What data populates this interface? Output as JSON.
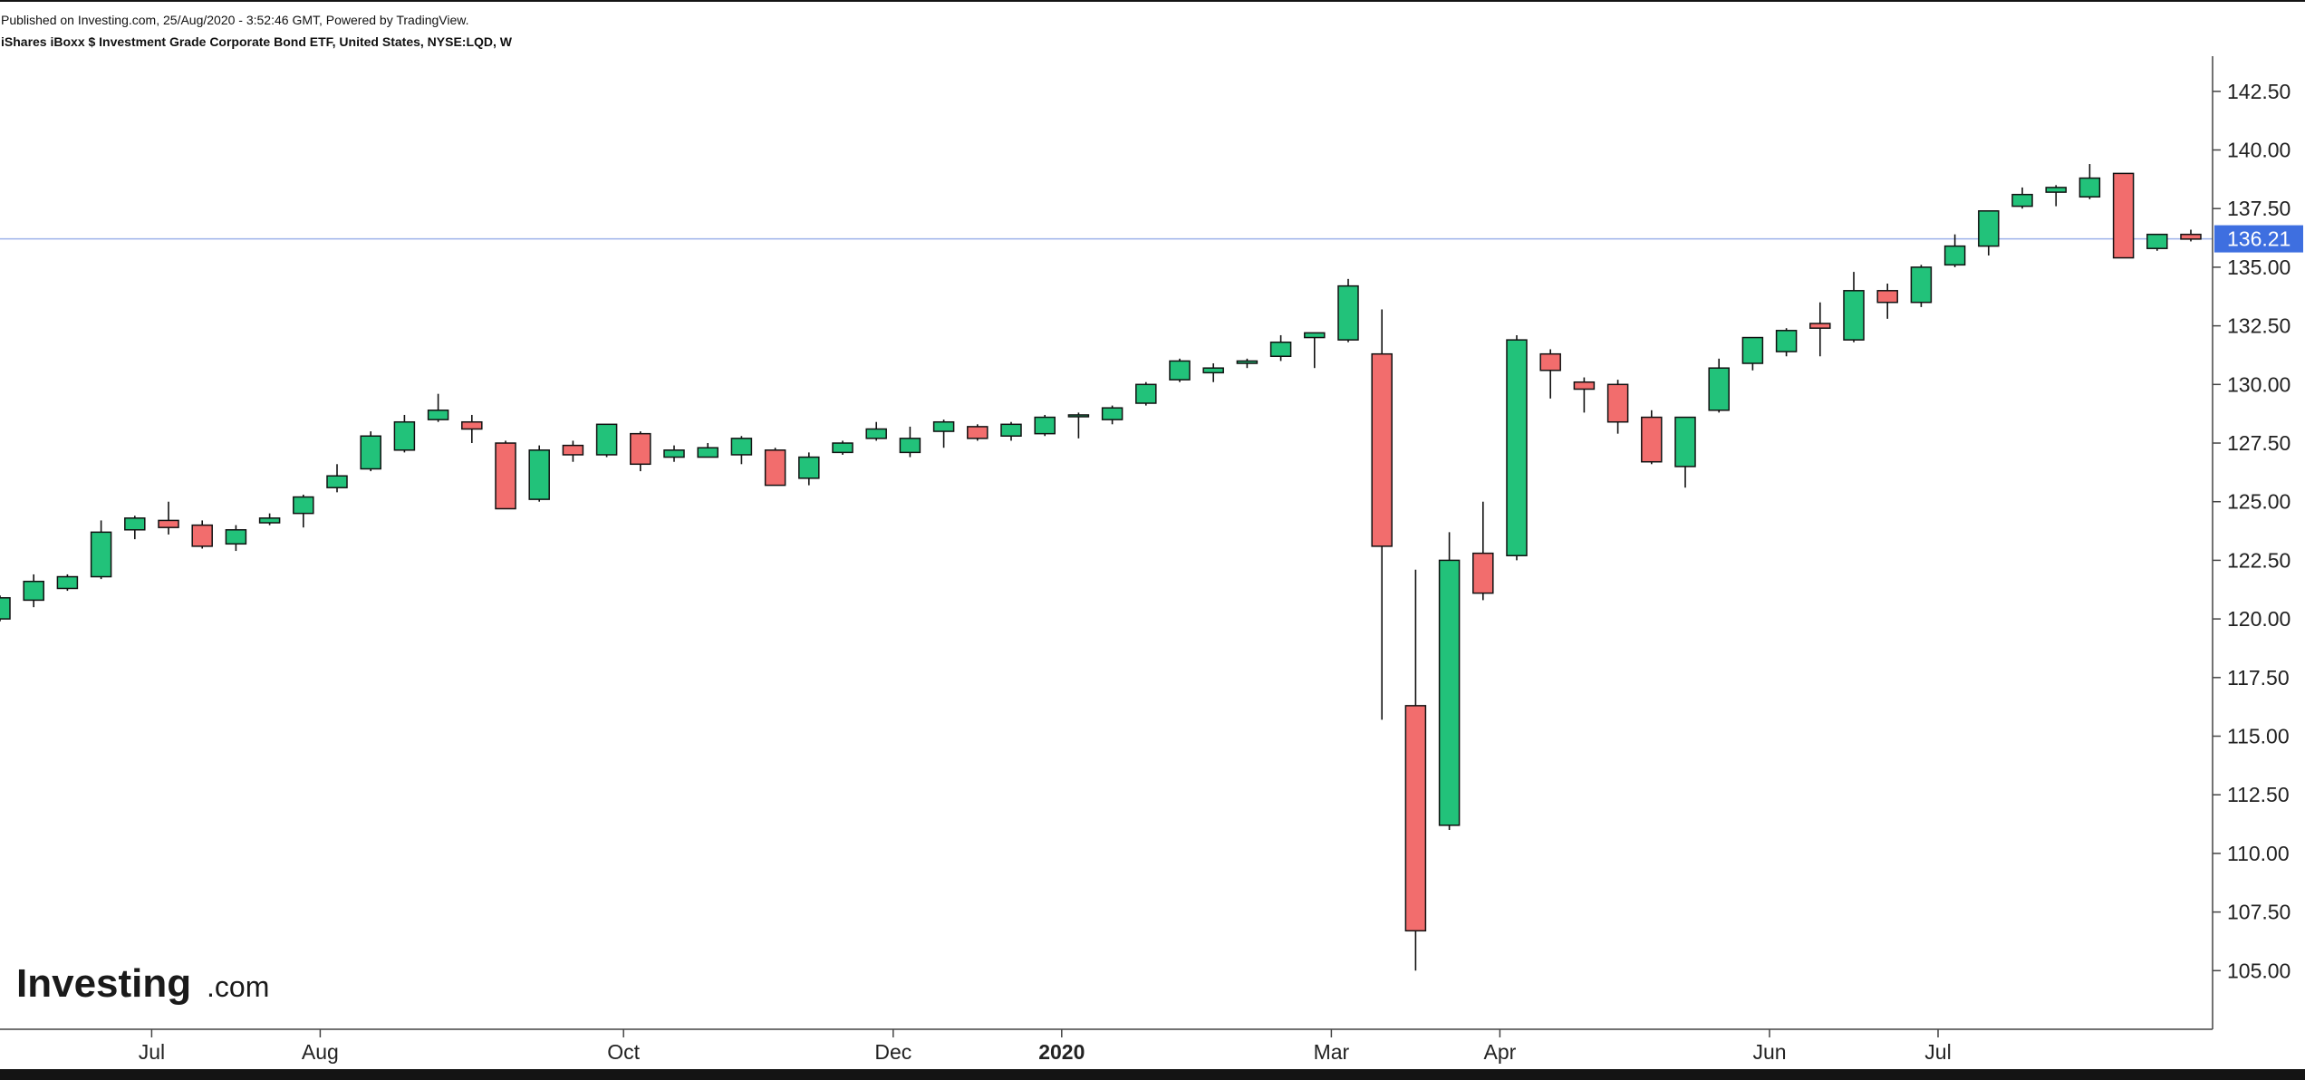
{
  "header": {
    "published": "Published on Investing.com, 25/Aug/2020 - 3:52:46 GMT, Powered by TradingView.",
    "instrument": "iShares iBoxx $ Investment Grade Corporate Bond ETF, United States, NYSE:LQD, W"
  },
  "logo": {
    "word": "Investing",
    "suffix": ".com"
  },
  "colors": {
    "up": "#22c27a",
    "down": "#f26d6d",
    "wick": "#111111",
    "last_price_label": "#3e6fe0",
    "last_price_line": "#9fb3ea"
  },
  "chart_data": {
    "type": "candlestick",
    "interval": "W",
    "ylim": [
      102.5,
      144.0
    ],
    "y_ticks": [
      "105.00",
      "107.50",
      "110.00",
      "112.50",
      "115.00",
      "117.50",
      "120.00",
      "122.50",
      "125.00",
      "127.50",
      "130.00",
      "132.50",
      "135.00",
      "137.50",
      "140.00",
      "142.50"
    ],
    "x_ticks": [
      {
        "label": "Jul",
        "index": 4.5
      },
      {
        "label": "Aug",
        "index": 9.5
      },
      {
        "label": "Oct",
        "index": 18.5
      },
      {
        "label": "Dec",
        "index": 26.5
      },
      {
        "label": "2020",
        "index": 31.5,
        "bold": true
      },
      {
        "label": "Mar",
        "index": 39.5
      },
      {
        "label": "Apr",
        "index": 44.5
      },
      {
        "label": "Jun",
        "index": 52.5
      },
      {
        "label": "Jul",
        "index": 57.5
      }
    ],
    "last_price": "136.21",
    "candles": [
      {
        "o": 120.0,
        "h": 121.0,
        "l": 119.9,
        "c": 120.9
      },
      {
        "o": 120.8,
        "h": 121.9,
        "l": 120.5,
        "c": 121.6
      },
      {
        "o": 121.3,
        "h": 121.9,
        "l": 121.2,
        "c": 121.8
      },
      {
        "o": 121.8,
        "h": 124.2,
        "l": 121.7,
        "c": 123.7
      },
      {
        "o": 123.8,
        "h": 124.4,
        "l": 123.4,
        "c": 124.3
      },
      {
        "o": 124.2,
        "h": 125.0,
        "l": 123.6,
        "c": 123.9
      },
      {
        "o": 124.0,
        "h": 124.2,
        "l": 123.0,
        "c": 123.1
      },
      {
        "o": 123.2,
        "h": 124.0,
        "l": 122.9,
        "c": 123.8
      },
      {
        "o": 124.1,
        "h": 124.5,
        "l": 124.0,
        "c": 124.3
      },
      {
        "o": 124.5,
        "h": 125.3,
        "l": 123.9,
        "c": 125.2
      },
      {
        "o": 125.6,
        "h": 126.6,
        "l": 125.4,
        "c": 126.1
      },
      {
        "o": 126.4,
        "h": 128.0,
        "l": 126.3,
        "c": 127.8
      },
      {
        "o": 127.2,
        "h": 128.7,
        "l": 127.1,
        "c": 128.4
      },
      {
        "o": 128.5,
        "h": 129.6,
        "l": 128.4,
        "c": 128.9
      },
      {
        "o": 128.4,
        "h": 128.7,
        "l": 127.5,
        "c": 128.1
      },
      {
        "o": 127.5,
        "h": 127.6,
        "l": 124.7,
        "c": 124.7
      },
      {
        "o": 125.1,
        "h": 127.4,
        "l": 125.0,
        "c": 127.2
      },
      {
        "o": 127.4,
        "h": 127.6,
        "l": 126.7,
        "c": 127.0
      },
      {
        "o": 127.0,
        "h": 128.3,
        "l": 126.9,
        "c": 128.3
      },
      {
        "o": 127.9,
        "h": 128.0,
        "l": 126.3,
        "c": 126.6
      },
      {
        "o": 126.9,
        "h": 127.4,
        "l": 126.7,
        "c": 127.2
      },
      {
        "o": 126.9,
        "h": 127.5,
        "l": 126.9,
        "c": 127.3
      },
      {
        "o": 127.0,
        "h": 127.8,
        "l": 126.6,
        "c": 127.7
      },
      {
        "o": 127.2,
        "h": 127.3,
        "l": 125.7,
        "c": 125.7
      },
      {
        "o": 126.0,
        "h": 127.1,
        "l": 125.7,
        "c": 126.9
      },
      {
        "o": 127.1,
        "h": 127.6,
        "l": 127.0,
        "c": 127.5
      },
      {
        "o": 127.7,
        "h": 128.4,
        "l": 127.6,
        "c": 128.1
      },
      {
        "o": 127.1,
        "h": 128.2,
        "l": 126.9,
        "c": 127.7
      },
      {
        "o": 128.0,
        "h": 128.5,
        "l": 127.3,
        "c": 128.4
      },
      {
        "o": 128.2,
        "h": 128.3,
        "l": 127.6,
        "c": 127.7
      },
      {
        "o": 127.8,
        "h": 128.4,
        "l": 127.6,
        "c": 128.3
      },
      {
        "o": 127.9,
        "h": 128.7,
        "l": 127.8,
        "c": 128.6
      },
      {
        "o": 128.7,
        "h": 128.8,
        "l": 127.7,
        "c": 128.7
      },
      {
        "o": 128.5,
        "h": 129.1,
        "l": 128.3,
        "c": 129.0
      },
      {
        "o": 129.2,
        "h": 130.1,
        "l": 129.1,
        "c": 130.0
      },
      {
        "o": 130.2,
        "h": 131.1,
        "l": 130.1,
        "c": 131.0
      },
      {
        "o": 130.5,
        "h": 130.9,
        "l": 130.1,
        "c": 130.7
      },
      {
        "o": 130.9,
        "h": 131.1,
        "l": 130.7,
        "c": 131.0
      },
      {
        "o": 131.2,
        "h": 132.1,
        "l": 131.0,
        "c": 131.8
      },
      {
        "o": 132.0,
        "h": 132.2,
        "l": 130.7,
        "c": 132.2
      },
      {
        "o": 131.9,
        "h": 134.5,
        "l": 131.8,
        "c": 134.2
      },
      {
        "o": 131.3,
        "h": 133.2,
        "l": 115.7,
        "c": 123.1
      },
      {
        "o": 116.3,
        "h": 122.1,
        "l": 105.0,
        "c": 106.7
      },
      {
        "o": 111.2,
        "h": 123.7,
        "l": 111.0,
        "c": 122.5
      },
      {
        "o": 122.8,
        "h": 125.0,
        "l": 120.8,
        "c": 121.1
      },
      {
        "o": 122.7,
        "h": 132.1,
        "l": 122.5,
        "c": 131.9
      },
      {
        "o": 131.3,
        "h": 131.5,
        "l": 129.4,
        "c": 130.6
      },
      {
        "o": 130.1,
        "h": 130.3,
        "l": 128.8,
        "c": 129.8
      },
      {
        "o": 130.0,
        "h": 130.2,
        "l": 127.9,
        "c": 128.4
      },
      {
        "o": 128.6,
        "h": 128.9,
        "l": 126.6,
        "c": 126.7
      },
      {
        "o": 126.5,
        "h": 128.6,
        "l": 125.6,
        "c": 128.6
      },
      {
        "o": 128.9,
        "h": 131.1,
        "l": 128.8,
        "c": 130.7
      },
      {
        "o": 130.9,
        "h": 132.0,
        "l": 130.6,
        "c": 132.0
      },
      {
        "o": 131.4,
        "h": 132.4,
        "l": 131.2,
        "c": 132.3
      },
      {
        "o": 132.6,
        "h": 133.5,
        "l": 131.2,
        "c": 132.4
      },
      {
        "o": 131.9,
        "h": 134.8,
        "l": 131.8,
        "c": 134.0
      },
      {
        "o": 134.0,
        "h": 134.3,
        "l": 132.8,
        "c": 133.5
      },
      {
        "o": 133.5,
        "h": 135.1,
        "l": 133.3,
        "c": 135.0
      },
      {
        "o": 135.1,
        "h": 136.4,
        "l": 135.0,
        "c": 135.9
      },
      {
        "o": 135.9,
        "h": 137.4,
        "l": 135.5,
        "c": 137.4
      },
      {
        "o": 137.6,
        "h": 138.4,
        "l": 137.5,
        "c": 138.1
      },
      {
        "o": 138.2,
        "h": 138.5,
        "l": 137.6,
        "c": 138.4
      },
      {
        "o": 138.0,
        "h": 139.4,
        "l": 137.9,
        "c": 138.8
      },
      {
        "o": 139.0,
        "h": 139.0,
        "l": 135.4,
        "c": 135.4
      },
      {
        "o": 135.8,
        "h": 136.4,
        "l": 135.7,
        "c": 136.4
      },
      {
        "o": 136.4,
        "h": 136.6,
        "l": 136.1,
        "c": 136.2
      }
    ]
  }
}
